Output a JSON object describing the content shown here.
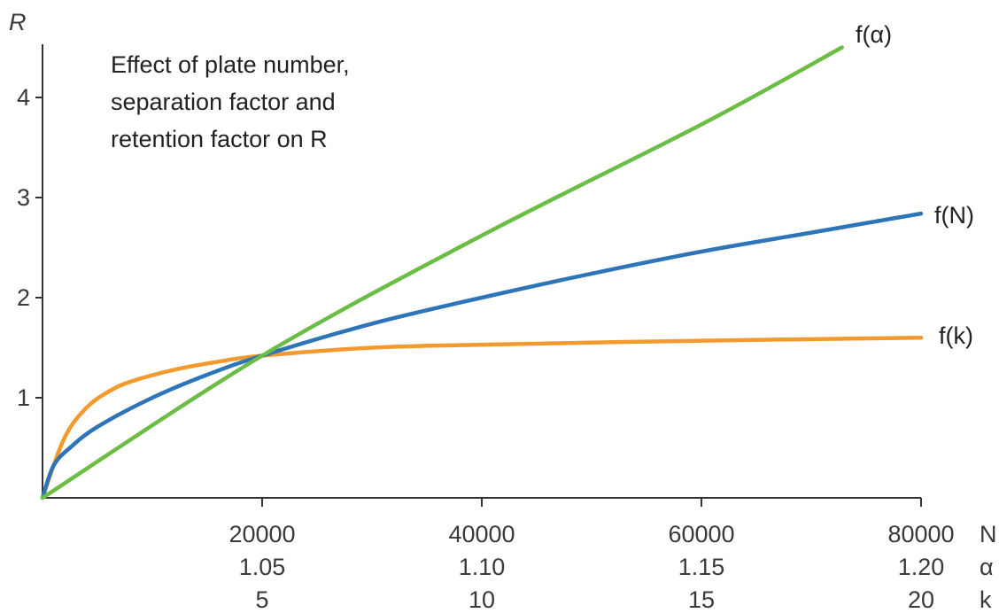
{
  "chart_data": {
    "type": "line",
    "title": "",
    "annotation": [
      "Effect of plate number,",
      "separation factor and",
      "retention factor on R"
    ],
    "ylabel": "R",
    "ylim": [
      0,
      4.5
    ],
    "y_ticks": [
      1,
      2,
      3,
      4
    ],
    "x_axes": [
      {
        "name": "N",
        "ticks": [
          "20000",
          "40000",
          "60000",
          "80000"
        ],
        "range": [
          0,
          80000
        ]
      },
      {
        "name": "α",
        "ticks": [
          "1.05",
          "1.10",
          "1.15",
          "1.20"
        ],
        "range": [
          1.0,
          1.2
        ]
      },
      {
        "name": "k",
        "ticks": [
          "5",
          "10",
          "15",
          "20"
        ],
        "range": [
          0,
          20
        ]
      }
    ],
    "grid": false,
    "legend": "inline-right",
    "series": [
      {
        "name": "f(α)",
        "color": "#6cbd45",
        "axis": "α",
        "points": [
          [
            1.0,
            0.0
          ],
          [
            1.05,
            1.42
          ],
          [
            1.1,
            2.62
          ],
          [
            1.15,
            3.73
          ],
          [
            1.182,
            4.5
          ]
        ]
      },
      {
        "name": "f(N)",
        "color": "#2d74b8",
        "axis": "N",
        "points": [
          [
            0,
            0.0
          ],
          [
            1000,
            0.32
          ],
          [
            2500,
            0.5
          ],
          [
            5000,
            0.71
          ],
          [
            10000,
            1.0
          ],
          [
            15000,
            1.23
          ],
          [
            20000,
            1.42
          ],
          [
            30000,
            1.74
          ],
          [
            40000,
            2.0
          ],
          [
            50000,
            2.24
          ],
          [
            60000,
            2.46
          ],
          [
            70000,
            2.65
          ],
          [
            80000,
            2.84
          ]
        ]
      },
      {
        "name": "f(k)",
        "color": "#f29a2e",
        "axis": "k",
        "points": [
          [
            0,
            0.0
          ],
          [
            0.5,
            0.6
          ],
          [
            1,
            0.9
          ],
          [
            1.5,
            1.06
          ],
          [
            2,
            1.16
          ],
          [
            3,
            1.28
          ],
          [
            4,
            1.36
          ],
          [
            5,
            1.42
          ],
          [
            7.5,
            1.5
          ],
          [
            10,
            1.53
          ],
          [
            15,
            1.57
          ],
          [
            20,
            1.6
          ]
        ]
      }
    ]
  }
}
